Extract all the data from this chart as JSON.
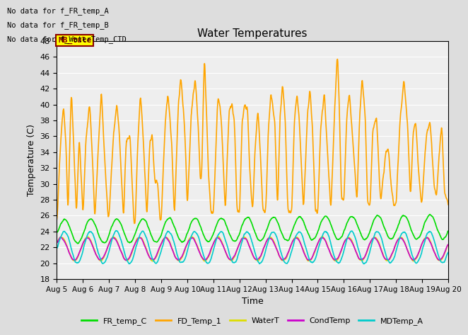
{
  "title": "Water Temperatures",
  "xlabel": "Time",
  "ylabel": "Temperature (C)",
  "ylim": [
    18,
    48
  ],
  "yticks": [
    18,
    20,
    22,
    24,
    26,
    28,
    30,
    32,
    34,
    36,
    38,
    40,
    42,
    44,
    46,
    48
  ],
  "background_color": "#dddddd",
  "plot_bg_color": "#eeeeee",
  "annotations": [
    "No data for f_FR_temp_A",
    "No data for f_FR_temp_B",
    "No data for f_WaterTemp_CTD"
  ],
  "mb_tule_label": "MB_tule",
  "legend_entries": [
    "FR_temp_C",
    "FD_Temp_1",
    "WaterT",
    "CondTemp",
    "MDTemp_A"
  ],
  "legend_colors": [
    "#00dd00",
    "#ffa500",
    "#dddd00",
    "#cc00cc",
    "#00cccc"
  ],
  "line_widths": [
    1.2,
    1.2,
    1.2,
    1.2,
    1.2
  ],
  "xtick_labels": [
    "Aug 5",
    "Aug 6",
    "Aug 7",
    "Aug 8",
    "Aug 9",
    "Aug 10",
    "Aug 11",
    "Aug 12",
    "Aug 13",
    "Aug 14",
    "Aug 15",
    "Aug 16",
    "Aug 17",
    "Aug 18",
    "Aug 19",
    "Aug 20"
  ],
  "num_points": 1440
}
